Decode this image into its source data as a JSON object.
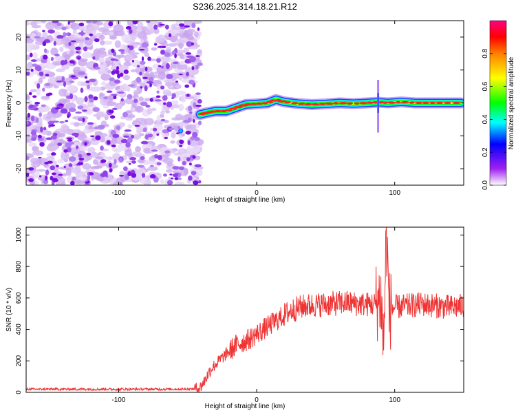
{
  "figure_title": "S236.2025.314.18.21.R12",
  "chart_data": [
    {
      "type": "heatmap",
      "title": "S236.2025.314.18.21.R12",
      "xlabel": "Height of straight line (km)",
      "ylabel": "Frequency (Hz)",
      "xlim": [
        -167,
        150
      ],
      "ylim": [
        -25,
        25
      ],
      "x_ticks": [
        -100,
        0,
        100
      ],
      "y_ticks": [
        -20,
        -10,
        0,
        10,
        20
      ],
      "x_tick_labels": [
        "-100",
        "0",
        "100"
      ],
      "y_tick_labels": [
        "-20",
        "-10",
        "0",
        "10",
        "20"
      ],
      "noise_region_x": [
        -167,
        -41
      ],
      "signal_ridge": {
        "x": [
          -41,
          -36,
          -30,
          -22,
          -15,
          -8,
          0,
          8,
          14,
          20,
          30,
          40,
          50,
          60,
          70,
          80,
          88,
          95,
          105,
          115,
          125,
          135,
          148
        ],
        "freq": [
          -3.5,
          -3,
          -2.5,
          -2.5,
          -1.5,
          -0.5,
          -0.3,
          0,
          1,
          0.3,
          -0.2,
          -0.5,
          -0.3,
          0,
          -0.2,
          0,
          0.2,
          0,
          0.3,
          0,
          0,
          0,
          0
        ]
      },
      "colorbar": {
        "label": "Normalized spectral amplitude",
        "range": [
          0,
          1
        ],
        "ticks": [
          0.0,
          0.2,
          0.4,
          0.6,
          0.8
        ],
        "tick_labels": [
          "0.0",
          "0.2",
          "0.4",
          "0.6",
          "0.8"
        ],
        "colors": [
          "#ffffff",
          "#a020f0",
          "#0000ff",
          "#00ffff",
          "#00ff00",
          "#ffff00",
          "#ff8000",
          "#ff0000",
          "#ff0080"
        ]
      }
    },
    {
      "type": "line",
      "xlabel": "Height of straight line (km)",
      "ylabel": "SNR (10 * v/v)",
      "xlim": [
        -167,
        150
      ],
      "ylim": [
        0,
        1050
      ],
      "x_ticks": [
        -100,
        0,
        100
      ],
      "y_ticks": [
        0,
        200,
        400,
        600,
        800,
        1000
      ],
      "x_tick_labels": [
        "-100",
        "0",
        "100"
      ],
      "y_tick_labels": [
        "0",
        "200",
        "400",
        "600",
        "800",
        "1000"
      ],
      "series": [
        {
          "name": "SNR",
          "color": "#ee3333",
          "x": [
            -167,
            -150,
            -120,
            -90,
            -60,
            -45,
            -41,
            -38,
            -33,
            -25,
            -15,
            -5,
            5,
            15,
            25,
            35,
            50,
            65,
            75,
            85,
            90,
            92,
            94,
            96,
            100,
            110,
            120,
            130,
            140,
            150
          ],
          "y": [
            20,
            20,
            20,
            20,
            20,
            22,
            30,
            70,
            150,
            220,
            300,
            340,
            400,
            460,
            520,
            550,
            560,
            570,
            560,
            560,
            600,
            300,
            1040,
            520,
            540,
            550,
            560,
            550,
            540,
            550
          ]
        }
      ]
    }
  ]
}
